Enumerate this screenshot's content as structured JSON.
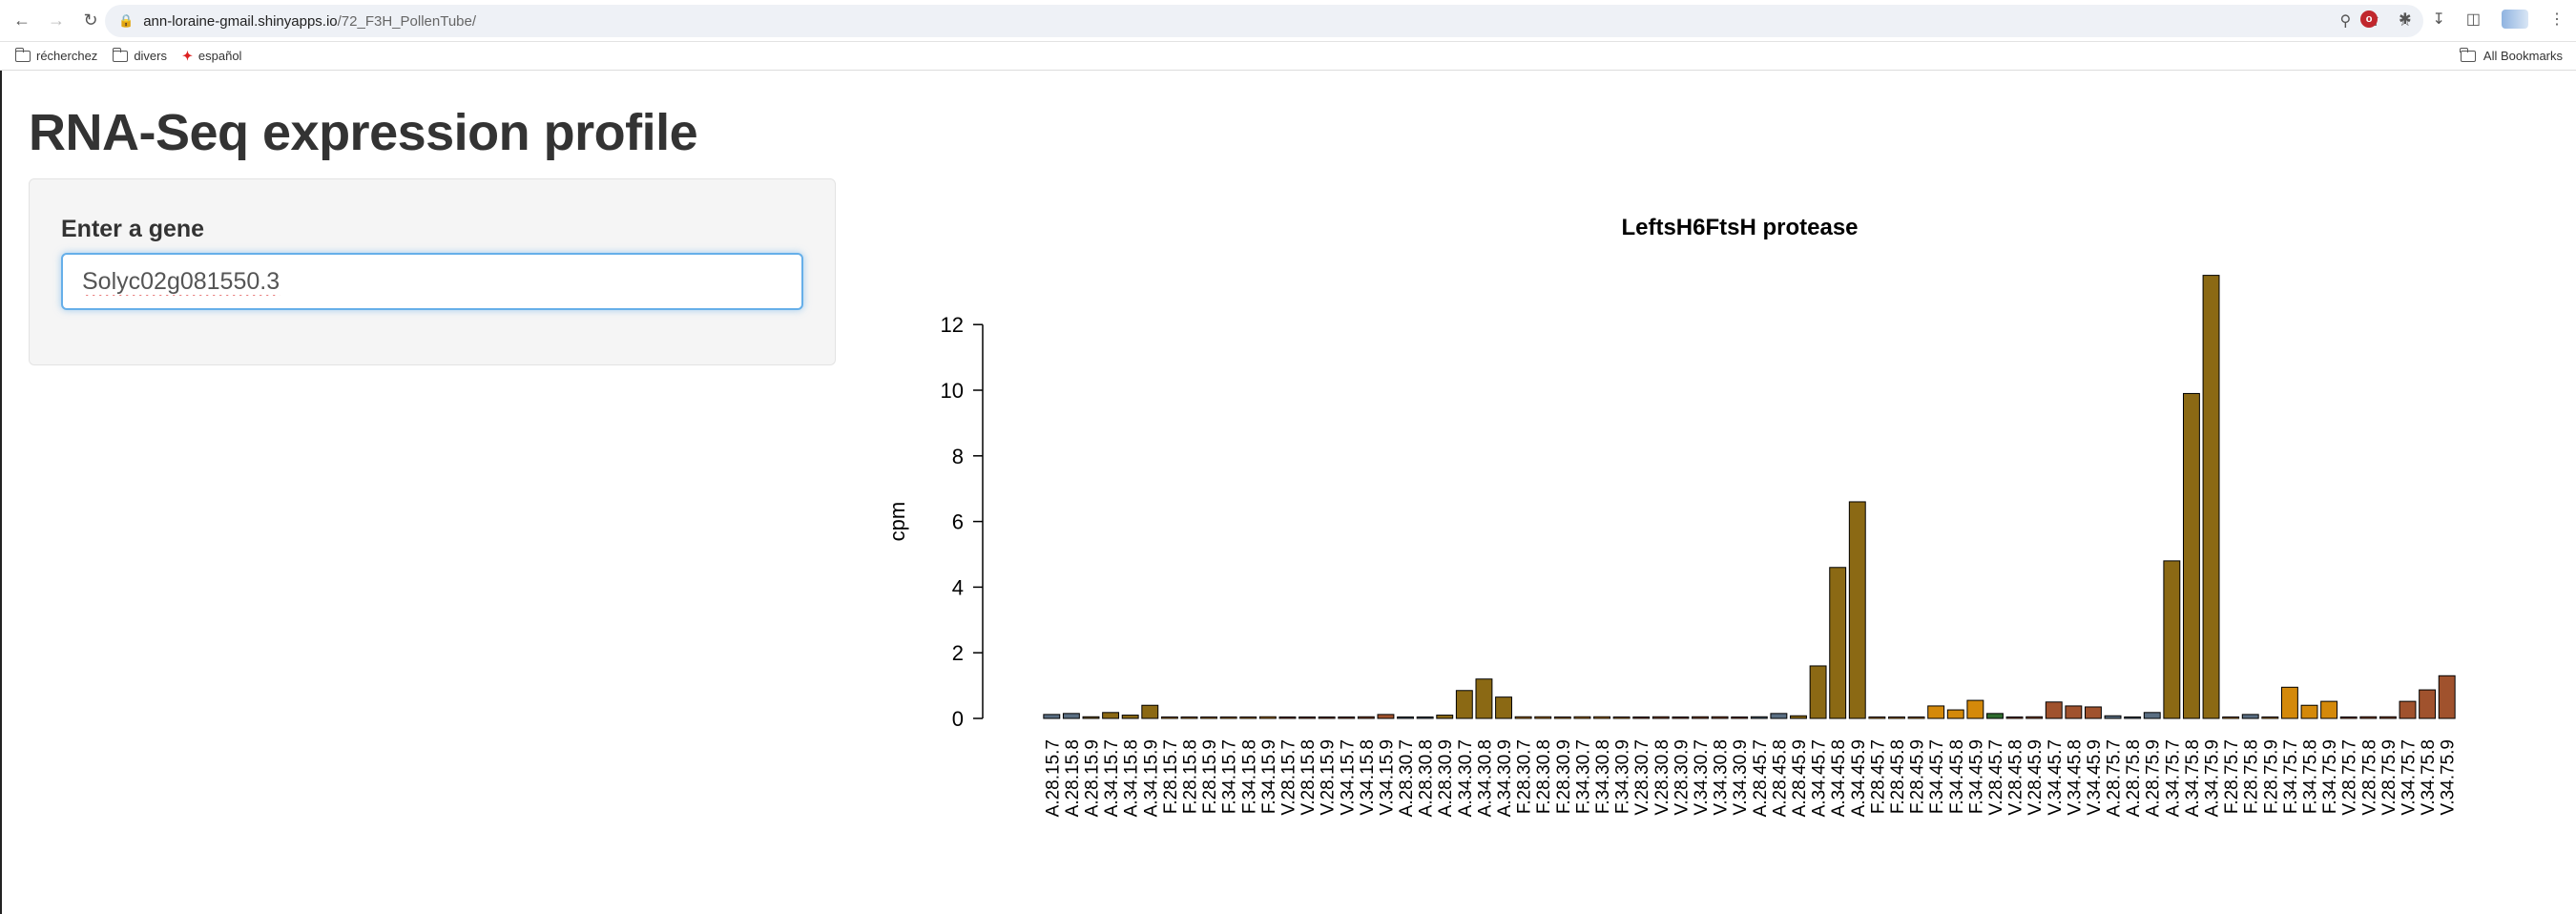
{
  "browser": {
    "url_host": "ann-loraine-gmail.shinyapps.io",
    "url_path": "/72_F3H_PollenTube/",
    "bookmarks": [
      {
        "label": "récherchez",
        "icon": "folder-icon"
      },
      {
        "label": "divers",
        "icon": "folder-icon"
      },
      {
        "label": "español",
        "icon": "spanishdict-icon"
      }
    ],
    "all_bookmarks": "All Bookmarks"
  },
  "page": {
    "title": "RNA-Seq expression profile",
    "gene_label": "Enter a gene",
    "gene_value": "Solyc02g081550.3"
  },
  "chart_data": {
    "type": "bar",
    "title": "LeftsH6FtsH protease",
    "ylabel": "cpm",
    "xlabel": "",
    "ylim": [
      0,
      13.5
    ],
    "yticks": [
      0,
      2,
      4,
      6,
      8,
      10,
      12
    ],
    "colors": {
      "A_dark": "#8B6914",
      "A_gray": "#5A6E82",
      "F_orange": "#D4890A",
      "V_brown": "#A0522D",
      "V_green": "#2E6B2E"
    },
    "categories": [
      "A.28.15.7",
      "A.28.15.8",
      "A.28.15.9",
      "A.34.15.7",
      "A.34.15.8",
      "A.34.15.9",
      "F.28.15.7",
      "F.28.15.8",
      "F.28.15.9",
      "F.34.15.7",
      "F.34.15.8",
      "F.34.15.9",
      "V.28.15.7",
      "V.28.15.8",
      "V.28.15.9",
      "V.34.15.7",
      "V.34.15.8",
      "V.34.15.9",
      "A.28.30.7",
      "A.28.30.8",
      "A.28.30.9",
      "A.34.30.7",
      "A.34.30.8",
      "A.34.30.9",
      "F.28.30.7",
      "F.28.30.8",
      "F.28.30.9",
      "F.34.30.7",
      "F.34.30.8",
      "F.34.30.9",
      "V.28.30.7",
      "V.28.30.8",
      "V.28.30.9",
      "V.34.30.7",
      "V.34.30.8",
      "V.34.30.9",
      "A.28.45.7",
      "A.28.45.8",
      "A.28.45.9",
      "A.34.45.7",
      "A.34.45.8",
      "A.34.45.9",
      "F.28.45.7",
      "F.28.45.8",
      "F.28.45.9",
      "F.34.45.7",
      "F.34.45.8",
      "F.34.45.9",
      "V.28.45.7",
      "V.28.45.8",
      "V.28.45.9",
      "V.34.45.7",
      "V.34.45.8",
      "V.34.45.9",
      "A.28.75.7",
      "A.28.75.8",
      "A.28.75.9",
      "A.34.75.7",
      "A.34.75.8",
      "A.34.75.9",
      "F.28.75.7",
      "F.28.75.8",
      "F.28.75.9",
      "F.34.75.7",
      "F.34.75.8",
      "F.34.75.9",
      "V.28.75.7",
      "V.28.75.8",
      "V.28.75.9",
      "V.34.75.7",
      "V.34.75.8",
      "V.34.75.9"
    ],
    "values": [
      0.12,
      0.15,
      0.05,
      0.18,
      0.1,
      0.4,
      0.02,
      0.04,
      0.02,
      0.02,
      0.02,
      0.05,
      0.02,
      0.02,
      0.02,
      0.02,
      0.05,
      0.12,
      0.03,
      0.03,
      0.1,
      0.85,
      1.2,
      0.65,
      0.05,
      0.05,
      0.03,
      0.05,
      0.05,
      0.03,
      0.03,
      0.05,
      0.03,
      0.05,
      0.05,
      0.03,
      0.05,
      0.15,
      0.08,
      1.6,
      4.6,
      6.6,
      0.03,
      0.02,
      0.02,
      0.38,
      0.26,
      0.55,
      0.15,
      0.03,
      0.05,
      0.5,
      0.38,
      0.35,
      0.08,
      0.03,
      0.18,
      4.8,
      9.9,
      13.5,
      0.02,
      0.12,
      0.03,
      0.95,
      0.4,
      0.52,
      0.03,
      0.05,
      0.05,
      0.52,
      0.87,
      1.3
    ],
    "bar_colors": [
      "#5A6E82",
      "#5A6E82",
      "#8B6914",
      "#8B6914",
      "#8B6914",
      "#8B6914",
      "#D4890A",
      "#D4890A",
      "#D4890A",
      "#D4890A",
      "#D4890A",
      "#D4890A",
      "#A0522D",
      "#A0522D",
      "#A0522D",
      "#A0522D",
      "#A0522D",
      "#A0522D",
      "#5A6E82",
      "#5A6E82",
      "#8B6914",
      "#8B6914",
      "#8B6914",
      "#8B6914",
      "#D4890A",
      "#D4890A",
      "#D4890A",
      "#D4890A",
      "#D4890A",
      "#D4890A",
      "#A0522D",
      "#A0522D",
      "#A0522D",
      "#A0522D",
      "#A0522D",
      "#A0522D",
      "#5A6E82",
      "#5A6E82",
      "#8B6914",
      "#8B6914",
      "#8B6914",
      "#8B6914",
      "#D4890A",
      "#D4890A",
      "#D4890A",
      "#D4890A",
      "#D4890A",
      "#D4890A",
      "#2E6B2E",
      "#A0522D",
      "#A0522D",
      "#A0522D",
      "#A0522D",
      "#A0522D",
      "#5A6E82",
      "#5A6E82",
      "#5A6E82",
      "#8B6914",
      "#8B6914",
      "#8B6914",
      "#D4890A",
      "#5A6E82",
      "#D4890A",
      "#D4890A",
      "#D4890A",
      "#D4890A",
      "#A0522D",
      "#A0522D",
      "#A0522D",
      "#A0522D",
      "#A0522D",
      "#A0522D"
    ]
  }
}
